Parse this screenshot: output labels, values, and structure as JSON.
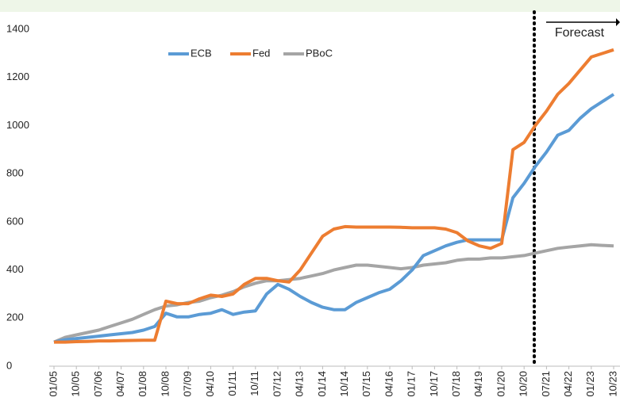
{
  "chart_data": {
    "type": "line",
    "categories": [
      "01/05",
      null,
      "10/05",
      null,
      "07/06",
      null,
      "04/07",
      null,
      "01/08",
      null,
      "10/08",
      null,
      "07/09",
      null,
      "04/10",
      null,
      "01/11",
      null,
      "10/11",
      null,
      "07/12",
      null,
      "04/13",
      null,
      "01/14",
      null,
      "10/14",
      null,
      "07/15",
      null,
      "04/16",
      null,
      "01/17",
      null,
      "10/17",
      null,
      "07/18",
      null,
      "04/19",
      null,
      "01/20",
      null,
      "10/20",
      null,
      "07/21",
      null,
      "04/22",
      null,
      "01/23",
      null,
      "10/23"
    ],
    "series": [
      {
        "name": "ECB",
        "color": "#5b9bd5",
        "values": [
          100,
          110,
          115,
          120,
          125,
          130,
          135,
          140,
          150,
          165,
          220,
          205,
          205,
          215,
          220,
          235,
          215,
          225,
          230,
          300,
          340,
          320,
          290,
          265,
          245,
          235,
          235,
          265,
          285,
          305,
          320,
          355,
          400,
          460,
          480,
          500,
          515,
          525,
          525,
          525,
          525,
          700,
          760,
          830,
          890,
          960,
          980,
          1030,
          1070,
          1100,
          1130
        ]
      },
      {
        "name": "Fed",
        "color": "#ed7d31",
        "values": [
          100,
          100,
          102,
          103,
          105,
          105,
          106,
          107,
          108,
          108,
          270,
          260,
          260,
          280,
          295,
          290,
          300,
          340,
          365,
          365,
          355,
          350,
          400,
          470,
          540,
          570,
          580,
          578,
          578,
          578,
          578,
          577,
          575,
          575,
          575,
          570,
          555,
          520,
          500,
          490,
          510,
          900,
          930,
          1000,
          1060,
          1130,
          1175,
          1230,
          1285,
          1300,
          1315
        ]
      },
      {
        "name": "PBoC",
        "color": "#a5a5a5",
        "values": [
          100,
          120,
          130,
          140,
          150,
          165,
          180,
          195,
          215,
          235,
          250,
          255,
          265,
          270,
          285,
          295,
          310,
          330,
          345,
          355,
          355,
          360,
          365,
          375,
          385,
          400,
          410,
          420,
          420,
          415,
          410,
          405,
          410,
          420,
          425,
          430,
          440,
          445,
          445,
          450,
          450,
          455,
          460,
          470,
          480,
          490,
          495,
          500,
          505,
          502,
          500
        ]
      }
    ],
    "ylim": [
      0,
      1400
    ],
    "yticks": [
      0,
      200,
      400,
      600,
      800,
      1000,
      1200,
      1400
    ],
    "annotation": "Forecast"
  }
}
